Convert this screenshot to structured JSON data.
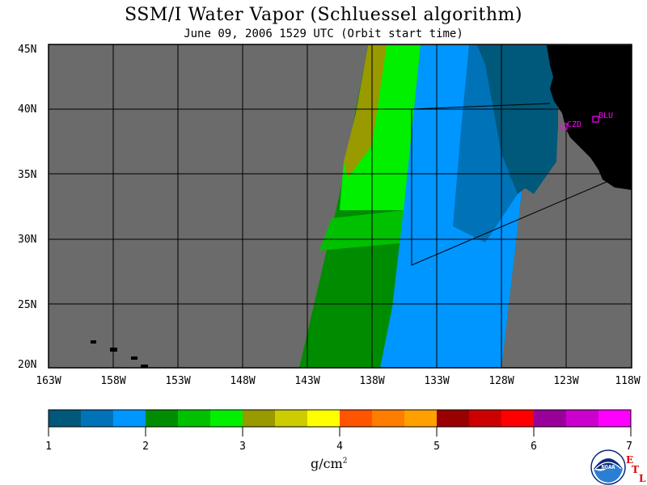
{
  "title": "SSM/I Water Vapor (Schluessel algorithm)",
  "subtitle": "June 09, 2006  1529 UTC  (Orbit start time)",
  "map": {
    "lat_labels": [
      "45N",
      "40N",
      "35N",
      "30N",
      "25N",
      "20N"
    ],
    "lon_labels": [
      "163W",
      "158W",
      "153W",
      "148W",
      "143W",
      "138W",
      "133W",
      "128W",
      "123W",
      "118W"
    ],
    "stations": [
      {
        "code": "CZD",
        "color": "#ff00ff"
      },
      {
        "code": "BLU",
        "color": "#ff00ff"
      }
    ],
    "colors": {
      "no_data": "#6b6b6b",
      "land": "#000000",
      "grid": "#000000"
    }
  },
  "colorbar": {
    "ticks": [
      "1",
      "2",
      "3",
      "4",
      "5",
      "6",
      "7"
    ],
    "colors": [
      "#00587a",
      "#0072b8",
      "#0096ff",
      "#008c00",
      "#00c000",
      "#00f000",
      "#999900",
      "#cccc00",
      "#ffff00",
      "#ff5500",
      "#ff7d00",
      "#ffa000",
      "#990000",
      "#cc0000",
      "#ff0000",
      "#990099",
      "#cc00cc",
      "#ff00ff"
    ],
    "units_base": "g/cm",
    "units_exp": "2"
  },
  "logo": {
    "text": "NOAA",
    "etl_letters": [
      "E",
      "T",
      "L"
    ]
  }
}
